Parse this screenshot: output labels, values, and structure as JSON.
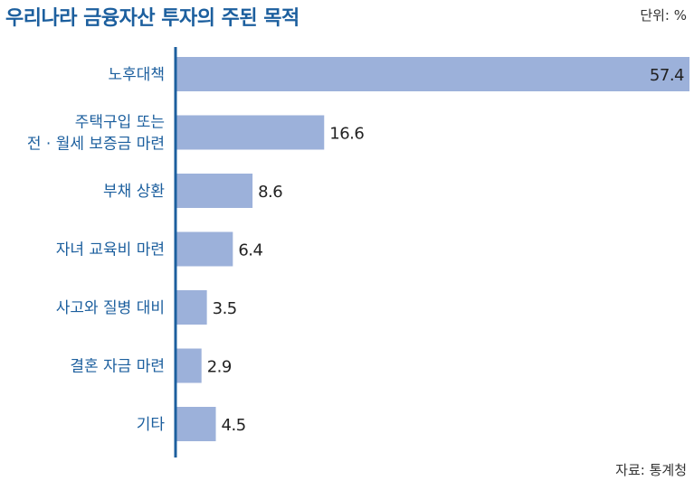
{
  "header": {
    "title": "우리나라 금융자산 투자의 주된 목적",
    "unit": "단위: %",
    "source": "자료: 통계청"
  },
  "colors": {
    "bar": "#9cb1da",
    "axis": "#1c5f9e",
    "category_text": "#1c5f9e",
    "title": "#1c5f9e"
  },
  "chart_data": {
    "type": "bar",
    "orientation": "horizontal",
    "title": "우리나라 금융자산 투자의 주된 목적",
    "unit": "단위: %",
    "categories": [
      [
        "노후대책"
      ],
      [
        "주택구입 또는",
        "전 · 월세 보증금 마련"
      ],
      [
        "부채 상환"
      ],
      [
        "자녀 교육비 마련"
      ],
      [
        "사고와 질병 대비"
      ],
      [
        "결혼 자금 마련"
      ],
      [
        "기타"
      ]
    ],
    "values": [
      57.4,
      16.6,
      8.6,
      6.4,
      3.5,
      2.9,
      4.5
    ],
    "xlim": [
      0,
      57.4
    ],
    "grid": false,
    "legend": "none"
  }
}
